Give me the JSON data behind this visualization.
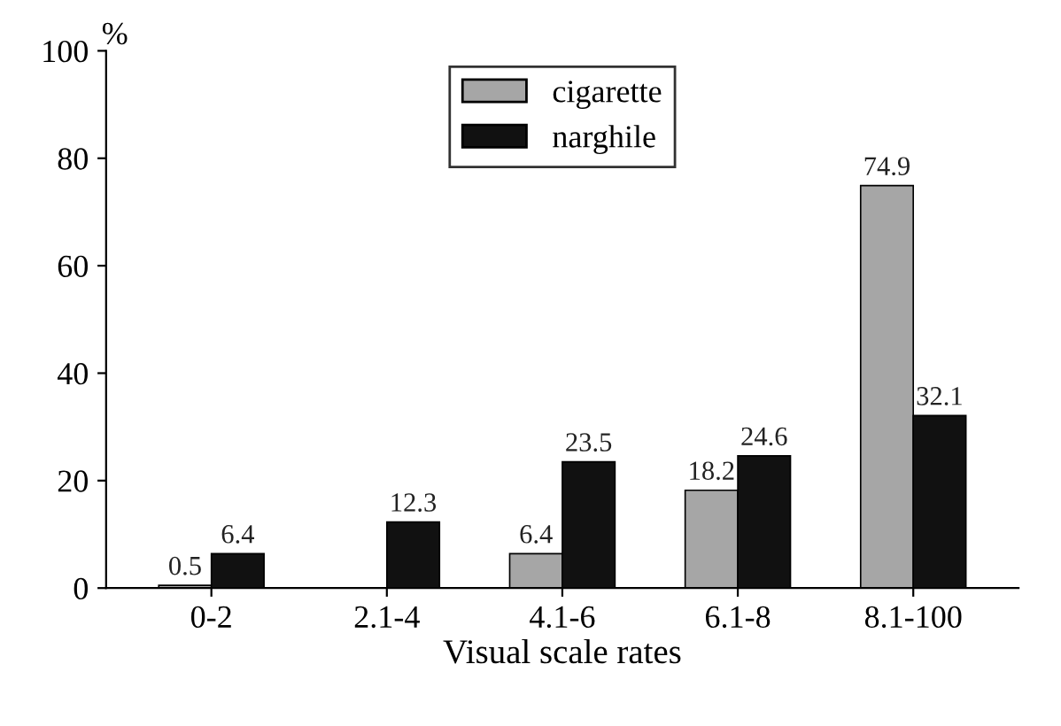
{
  "chart_data": {
    "type": "bar",
    "xlabel": "Visual scale rates",
    "ylabel": "%",
    "categories": [
      "0-2",
      "2.1-4",
      "4.1-6",
      "6.1-8",
      "8.1-100"
    ],
    "series": [
      {
        "name": "cigarette",
        "color": "#a6a6a6",
        "values": [
          0.5,
          null,
          6.4,
          18.2,
          74.9
        ],
        "value_labels": [
          "0.5",
          null,
          "6.4",
          "18.2",
          "74.9"
        ]
      },
      {
        "name": "narghile",
        "color": "#111111",
        "values": [
          6.4,
          12.3,
          23.5,
          24.6,
          32.1
        ],
        "value_labels": [
          "6.4",
          "12.3",
          "23.5",
          "24.6",
          "32.1"
        ]
      }
    ],
    "ylim": [
      0,
      100
    ],
    "yticks": [
      0,
      20,
      40,
      60,
      80,
      100
    ],
    "grid": false,
    "legend": "top"
  }
}
